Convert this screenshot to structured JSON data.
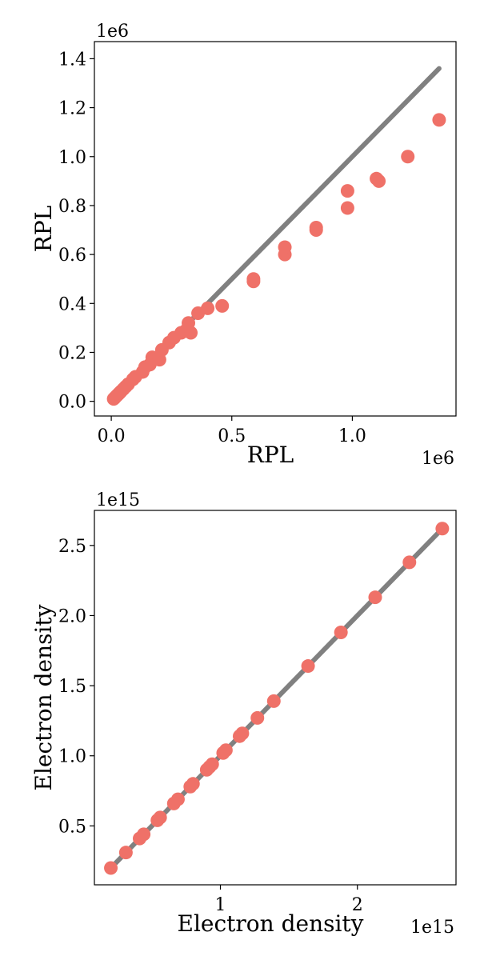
{
  "chart_data": [
    {
      "type": "scatter",
      "xlabel": "RPL",
      "ylabel": "RPL",
      "x_offset_label": "1e6",
      "y_offset_label": "1e6",
      "xlim": [
        -0.07,
        1.43
      ],
      "ylim": [
        -0.06,
        1.47
      ],
      "x_ticks": [
        0.0,
        0.5,
        1.0
      ],
      "x_tick_labels": [
        "0.0",
        "0.5",
        "1.0"
      ],
      "y_ticks": [
        0.0,
        0.2,
        0.4,
        0.6,
        0.8,
        1.0,
        1.2,
        1.4
      ],
      "y_tick_labels": [
        "0.0",
        "0.2",
        "0.4",
        "0.6",
        "0.8",
        "1.0",
        "1.2",
        "1.4"
      ],
      "reference_line": {
        "x": [
          0.0,
          1.36
        ],
        "y": [
          0.0,
          1.36
        ],
        "color": "#808080"
      },
      "point_color": "#ef7168",
      "grid": false,
      "x": [
        0.01,
        0.015,
        0.02,
        0.025,
        0.03,
        0.035,
        0.04,
        0.05,
        0.06,
        0.07,
        0.09,
        0.1,
        0.13,
        0.14,
        0.16,
        0.17,
        0.2,
        0.21,
        0.24,
        0.26,
        0.29,
        0.31,
        0.32,
        0.33,
        0.36,
        0.4,
        0.46,
        0.59,
        0.72,
        0.85,
        0.98,
        1.1,
        1.23,
        1.36
      ],
      "y": [
        0.01,
        0.015,
        0.02,
        0.025,
        0.03,
        0.035,
        0.04,
        0.05,
        0.06,
        0.07,
        0.09,
        0.1,
        0.12,
        0.14,
        0.15,
        0.18,
        0.17,
        0.21,
        0.24,
        0.26,
        0.28,
        0.29,
        0.32,
        0.28,
        0.36,
        0.38,
        0.39,
        0.5,
        0.6,
        0.7,
        0.79,
        0.91,
        1.0,
        1.15
      ],
      "extra_points": {
        "x": [
          0.59,
          0.72,
          0.85,
          0.98,
          1.11
        ],
        "y": [
          0.49,
          0.63,
          0.71,
          0.86,
          0.9
        ]
      }
    },
    {
      "type": "scatter",
      "xlabel": "Electron density",
      "ylabel": "Electron density",
      "x_offset_label": "1e15",
      "y_offset_label": "1e15",
      "xlim": [
        0.08,
        2.72
      ],
      "ylim": [
        0.08,
        2.75
      ],
      "x_ticks": [
        1,
        2
      ],
      "x_tick_labels": [
        "1",
        "2"
      ],
      "y_ticks": [
        0.5,
        1.0,
        1.5,
        2.0,
        2.5
      ],
      "y_tick_labels": [
        "0.5",
        "1.0",
        "1.5",
        "2.0",
        "2.5"
      ],
      "reference_line": {
        "x": [
          0.2,
          2.62
        ],
        "y": [
          0.2,
          2.62
        ],
        "color": "#808080"
      },
      "point_color": "#ef7168",
      "grid": false,
      "x": [
        0.2,
        0.31,
        0.41,
        0.44,
        0.54,
        0.56,
        0.66,
        0.69,
        0.78,
        0.8,
        0.9,
        0.92,
        0.94,
        1.02,
        1.04,
        1.14,
        1.16,
        1.27,
        1.39,
        1.64,
        1.88,
        2.13,
        2.38,
        2.62
      ],
      "y": [
        0.2,
        0.31,
        0.41,
        0.44,
        0.54,
        0.56,
        0.66,
        0.69,
        0.78,
        0.8,
        0.9,
        0.92,
        0.94,
        1.02,
        1.04,
        1.14,
        1.16,
        1.27,
        1.39,
        1.64,
        1.88,
        2.13,
        2.38,
        2.62
      ]
    }
  ]
}
